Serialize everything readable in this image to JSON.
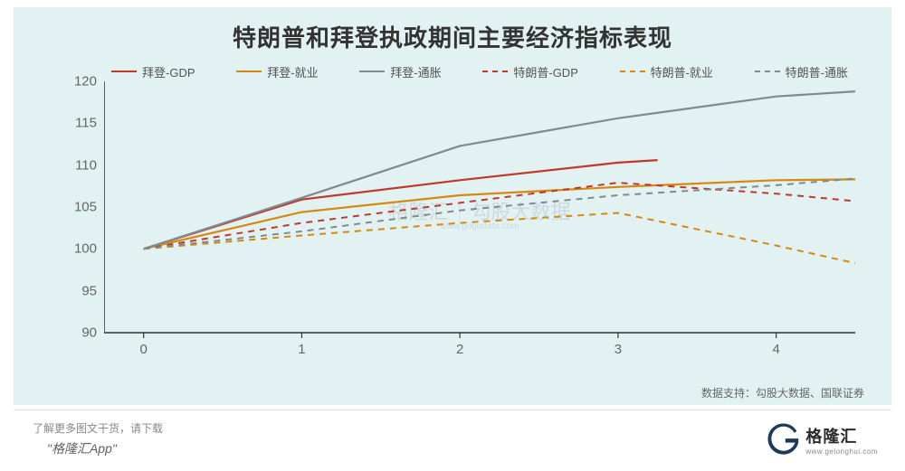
{
  "chart": {
    "type": "line",
    "title": "特朗普和拜登执政期间主要经济指标表现",
    "title_fontsize": 26,
    "title_color": "#333333",
    "background_color": "#e2f1f2",
    "plot_background": "#e2f1f2",
    "axis_line_color": "#333333",
    "axis_line_width": 1.5,
    "tick_color": "#333333",
    "tick_length": 6,
    "label_color": "#666666",
    "label_fontsize": 15,
    "xlim": [
      -0.25,
      4.5
    ],
    "ylim": [
      90,
      120
    ],
    "ytick_step": 5,
    "yticks": [
      90,
      95,
      100,
      105,
      110,
      115,
      120
    ],
    "xticks": [
      0,
      1,
      2,
      3,
      4
    ],
    "grid": false,
    "line_width_solid": 2.2,
    "line_width_dashed": 2.0,
    "dash_pattern": "7,6",
    "series": [
      {
        "name": "biden_gdp",
        "label": "拜登-GDP",
        "color": "#c0392b",
        "style": "solid",
        "x": [
          0,
          1,
          2,
          3,
          3.25
        ],
        "y": [
          100,
          105.9,
          108.2,
          110.3,
          110.6
        ]
      },
      {
        "name": "biden_employment",
        "label": "拜登-就业",
        "color": "#d68910",
        "style": "solid",
        "x": [
          0,
          1,
          2,
          3,
          4,
          4.5
        ],
        "y": [
          100,
          104.4,
          106.4,
          107.4,
          108.2,
          108.3
        ]
      },
      {
        "name": "biden_inflation",
        "label": "拜登-通胀",
        "color": "#7f8c8d",
        "style": "solid",
        "x": [
          0,
          1,
          2,
          3,
          4,
          4.5
        ],
        "y": [
          100,
          106.1,
          112.3,
          115.6,
          118.2,
          118.8
        ]
      },
      {
        "name": "trump_gdp",
        "label": "特朗普-GDP",
        "color": "#c0392b",
        "style": "dashed",
        "x": [
          0,
          1,
          2,
          3,
          4,
          4.5
        ],
        "y": [
          100,
          103.1,
          105.5,
          107.9,
          106.6,
          105.7
        ]
      },
      {
        "name": "trump_employment",
        "label": "特朗普-就业",
        "color": "#d68910",
        "style": "dashed",
        "x": [
          0,
          1,
          2,
          3,
          4,
          4.5
        ],
        "y": [
          100,
          101.6,
          103.1,
          104.3,
          100.4,
          98.3
        ]
      },
      {
        "name": "trump_inflation",
        "label": "特朗普-通胀",
        "color": "#7f8c8d",
        "style": "dashed",
        "x": [
          0,
          1,
          2,
          3,
          4,
          4.5
        ],
        "y": [
          100,
          102.1,
          104.6,
          106.4,
          107.6,
          108.4
        ]
      }
    ],
    "legend_position": "top",
    "data_source": "数据支持：勾股大数据、国联证券"
  },
  "watermark": {
    "left_text": "格隆汇",
    "right_text": "勾股大数据",
    "sub_text": "www.gogudata.com"
  },
  "footer": {
    "note": "了解更多图文干货，请下载",
    "app_name": "\"格隆汇App\""
  },
  "brand": {
    "text": "格隆汇",
    "sub": "www.gelonghui.com",
    "logo_color": "#1b3a5c"
  }
}
